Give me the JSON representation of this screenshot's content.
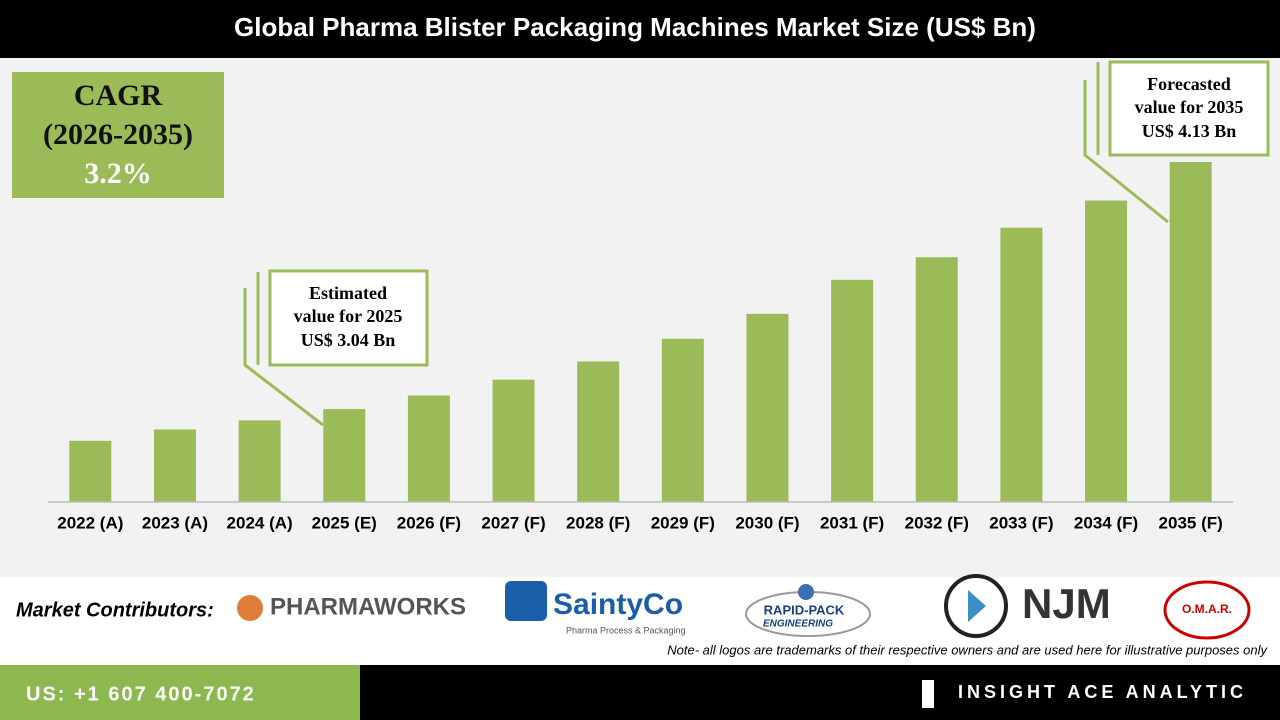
{
  "chart_data": {
    "type": "bar",
    "title": "Global Pharma Blister Packaging Machines Market Size (US$ Bn)",
    "categories": [
      "2022 (A)",
      "2023 (A)",
      "2024 (A)",
      "2025 (E)",
      "2026 (F)",
      "2027 (F)",
      "2028 (F)",
      "2029 (F)",
      "2030 (F)",
      "2031 (F)",
      "2032 (F)",
      "2033 (F)",
      "2034 (F)",
      "2035 (F)"
    ],
    "values": [
      2.9,
      2.95,
      2.99,
      3.04,
      3.1,
      3.17,
      3.25,
      3.35,
      3.46,
      3.61,
      3.71,
      3.84,
      3.96,
      4.13
    ],
    "color": "#9bbb59",
    "ylim": [
      2.63,
      4.58
    ]
  },
  "cagr": {
    "line1": "CAGR",
    "line2": "(2026-2035)",
    "line3": "3.2%"
  },
  "callouts": [
    {
      "line1": "Estimated",
      "line2": "value for 2025",
      "line3": "US$ 3.04 Bn"
    },
    {
      "line1": "Forecasted",
      "line2": "value for 2035",
      "line3": "US$ 4.13 Bn"
    }
  ],
  "contributors": {
    "label": "Market Contributors:",
    "logos": [
      "PHARMAWORKS",
      "SaintyCo",
      "Pharma Process & Packaging",
      "RAPID-PACK",
      "ENGINEERING",
      "NJM",
      "O.M.A.R."
    ],
    "note": "Note- all logos are trademarks of their respective owners and are used here for illustrative purposes only"
  },
  "footer": {
    "phone": "US: +1 607 400-7072",
    "brand": "INSIGHT ACE ANALYTIC"
  }
}
